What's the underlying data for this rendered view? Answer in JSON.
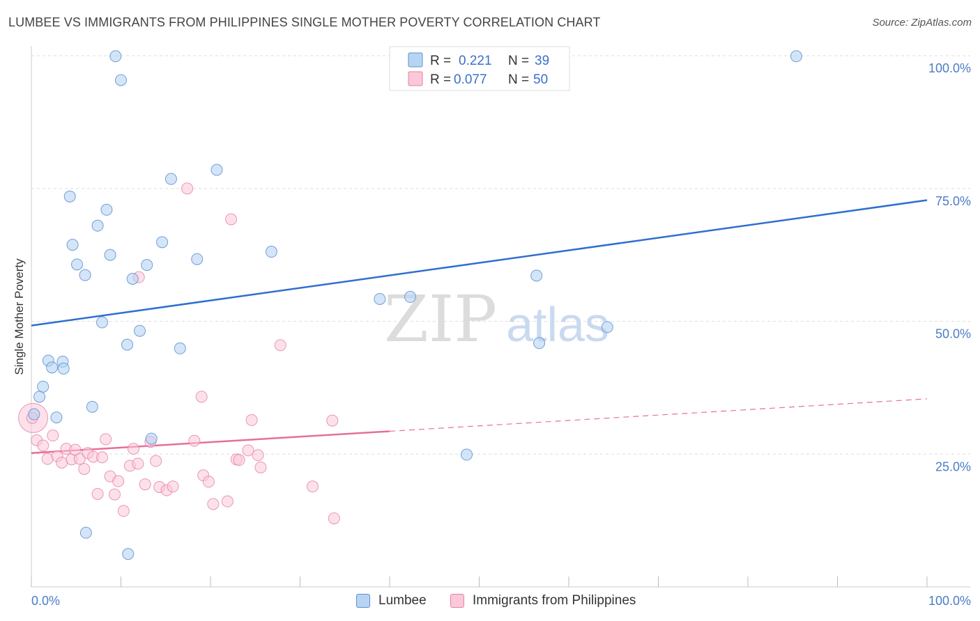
{
  "title": "LUMBEE VS IMMIGRANTS FROM PHILIPPINES SINGLE MOTHER POVERTY CORRELATION CHART",
  "source": "Source: ZipAtlas.com",
  "watermark": {
    "zip": "ZIP",
    "atlas": "atlas"
  },
  "colors": {
    "lumbee_fill": "#b8d4f4",
    "lumbee_stroke": "#5b8fd1",
    "lumbee_line": "#2f6fce",
    "phil_fill": "#fbc8d8",
    "phil_stroke": "#e57fa1",
    "phil_line": "#e66f99",
    "axis_text": "#4a7cc7",
    "grid": "#dddddd"
  },
  "legend_top": {
    "rows": [
      {
        "r_label": "R =",
        "r_value": "0.221",
        "n_label": "N =",
        "n_value": "39"
      },
      {
        "r_label": "R =",
        "r_value": "0.077",
        "n_label": "N =",
        "n_value": "50"
      }
    ]
  },
  "legend_bottom": [
    "Lumbee",
    "Immigrants from Philippines"
  ],
  "chart_data": {
    "type": "scatter",
    "title": "LUMBEE VS IMMIGRANTS FROM PHILIPPINES SINGLE MOTHER POVERTY CORRELATION CHART",
    "xlabel": "",
    "ylabel": "Single Mother Poverty",
    "xlim": [
      0,
      100
    ],
    "ylim": [
      0,
      100
    ],
    "x_tick_labels": [
      "0.0%",
      "100.0%"
    ],
    "y_tick_labels": [
      "25.0%",
      "50.0%",
      "75.0%",
      "100.0%"
    ],
    "y_ticks": [
      25,
      50,
      75,
      100
    ],
    "grid": true,
    "legend_position": "top-center",
    "series": [
      {
        "name": "Lumbee",
        "points": [
          [
            0.3,
            32.5
          ],
          [
            0.9,
            35.8
          ],
          [
            1.3,
            37.7
          ],
          [
            1.9,
            42.6
          ],
          [
            2.3,
            41.3
          ],
          [
            2.8,
            31.9
          ],
          [
            3.5,
            42.4
          ],
          [
            3.6,
            41.1
          ],
          [
            4.3,
            73.5
          ],
          [
            4.6,
            64.4
          ],
          [
            5.1,
            60.7
          ],
          [
            6.0,
            58.7
          ],
          [
            6.1,
            10.2
          ],
          [
            6.8,
            33.9
          ],
          [
            7.4,
            68.0
          ],
          [
            7.9,
            49.8
          ],
          [
            8.4,
            71.0
          ],
          [
            8.8,
            62.5
          ],
          [
            9.4,
            99.9
          ],
          [
            10.0,
            95.4
          ],
          [
            10.7,
            45.6
          ],
          [
            10.8,
            6.2
          ],
          [
            11.3,
            58.0
          ],
          [
            12.1,
            48.2
          ],
          [
            12.9,
            60.6
          ],
          [
            13.4,
            27.9
          ],
          [
            14.6,
            64.9
          ],
          [
            15.6,
            76.8
          ],
          [
            16.6,
            44.9
          ],
          [
            18.5,
            61.7
          ],
          [
            20.7,
            78.5
          ],
          [
            26.8,
            63.1
          ],
          [
            38.9,
            54.2
          ],
          [
            42.3,
            54.6
          ],
          [
            48.6,
            24.9
          ],
          [
            56.4,
            58.6
          ],
          [
            56.7,
            45.9
          ],
          [
            64.3,
            48.9
          ],
          [
            85.4,
            99.9
          ]
        ]
      },
      {
        "name": "Immigrants from Philippines",
        "points": [
          [
            0.2,
            31.8
          ],
          [
            0.6,
            27.6
          ],
          [
            1.3,
            26.6
          ],
          [
            1.8,
            24.1
          ],
          [
            2.4,
            28.5
          ],
          [
            2.9,
            24.6
          ],
          [
            3.4,
            23.4
          ],
          [
            3.9,
            26.0
          ],
          [
            4.5,
            24.0
          ],
          [
            4.9,
            25.8
          ],
          [
            5.4,
            24.1
          ],
          [
            5.9,
            22.2
          ],
          [
            6.3,
            25.2
          ],
          [
            6.9,
            24.5
          ],
          [
            7.4,
            17.5
          ],
          [
            7.9,
            24.4
          ],
          [
            8.3,
            27.8
          ],
          [
            8.8,
            20.8
          ],
          [
            9.3,
            17.4
          ],
          [
            9.7,
            19.9
          ],
          [
            10.3,
            14.3
          ],
          [
            11.0,
            22.8
          ],
          [
            11.4,
            26.0
          ],
          [
            11.9,
            23.2
          ],
          [
            12.7,
            19.3
          ],
          [
            13.3,
            27.3
          ],
          [
            13.9,
            23.7
          ],
          [
            14.3,
            18.8
          ],
          [
            15.1,
            18.2
          ],
          [
            15.8,
            18.9
          ],
          [
            12.0,
            58.3
          ],
          [
            17.4,
            75.0
          ],
          [
            18.2,
            27.5
          ],
          [
            19.0,
            35.8
          ],
          [
            19.2,
            21.0
          ],
          [
            19.8,
            19.8
          ],
          [
            20.3,
            15.6
          ],
          [
            21.9,
            16.1
          ],
          [
            22.3,
            69.2
          ],
          [
            22.9,
            24.0
          ],
          [
            23.2,
            23.9
          ],
          [
            24.2,
            25.7
          ],
          [
            24.6,
            31.4
          ],
          [
            25.3,
            24.8
          ],
          [
            25.6,
            22.5
          ],
          [
            27.8,
            45.5
          ],
          [
            31.4,
            18.9
          ],
          [
            33.6,
            31.3
          ],
          [
            33.8,
            12.9
          ],
          [
            0.1,
            31.8
          ]
        ]
      }
    ],
    "trend_lines": [
      {
        "series": "Lumbee",
        "x": [
          0,
          100
        ],
        "y": [
          49.2,
          72.8
        ],
        "style": "solid"
      },
      {
        "series": "Immigrants from Philippines",
        "x": [
          0,
          40
        ],
        "y": [
          25.2,
          29.3
        ],
        "style": "solid"
      },
      {
        "series": "Immigrants from Philippines",
        "x": [
          40,
          100
        ],
        "y": [
          29.3,
          35.4
        ],
        "style": "dashed"
      }
    ]
  }
}
